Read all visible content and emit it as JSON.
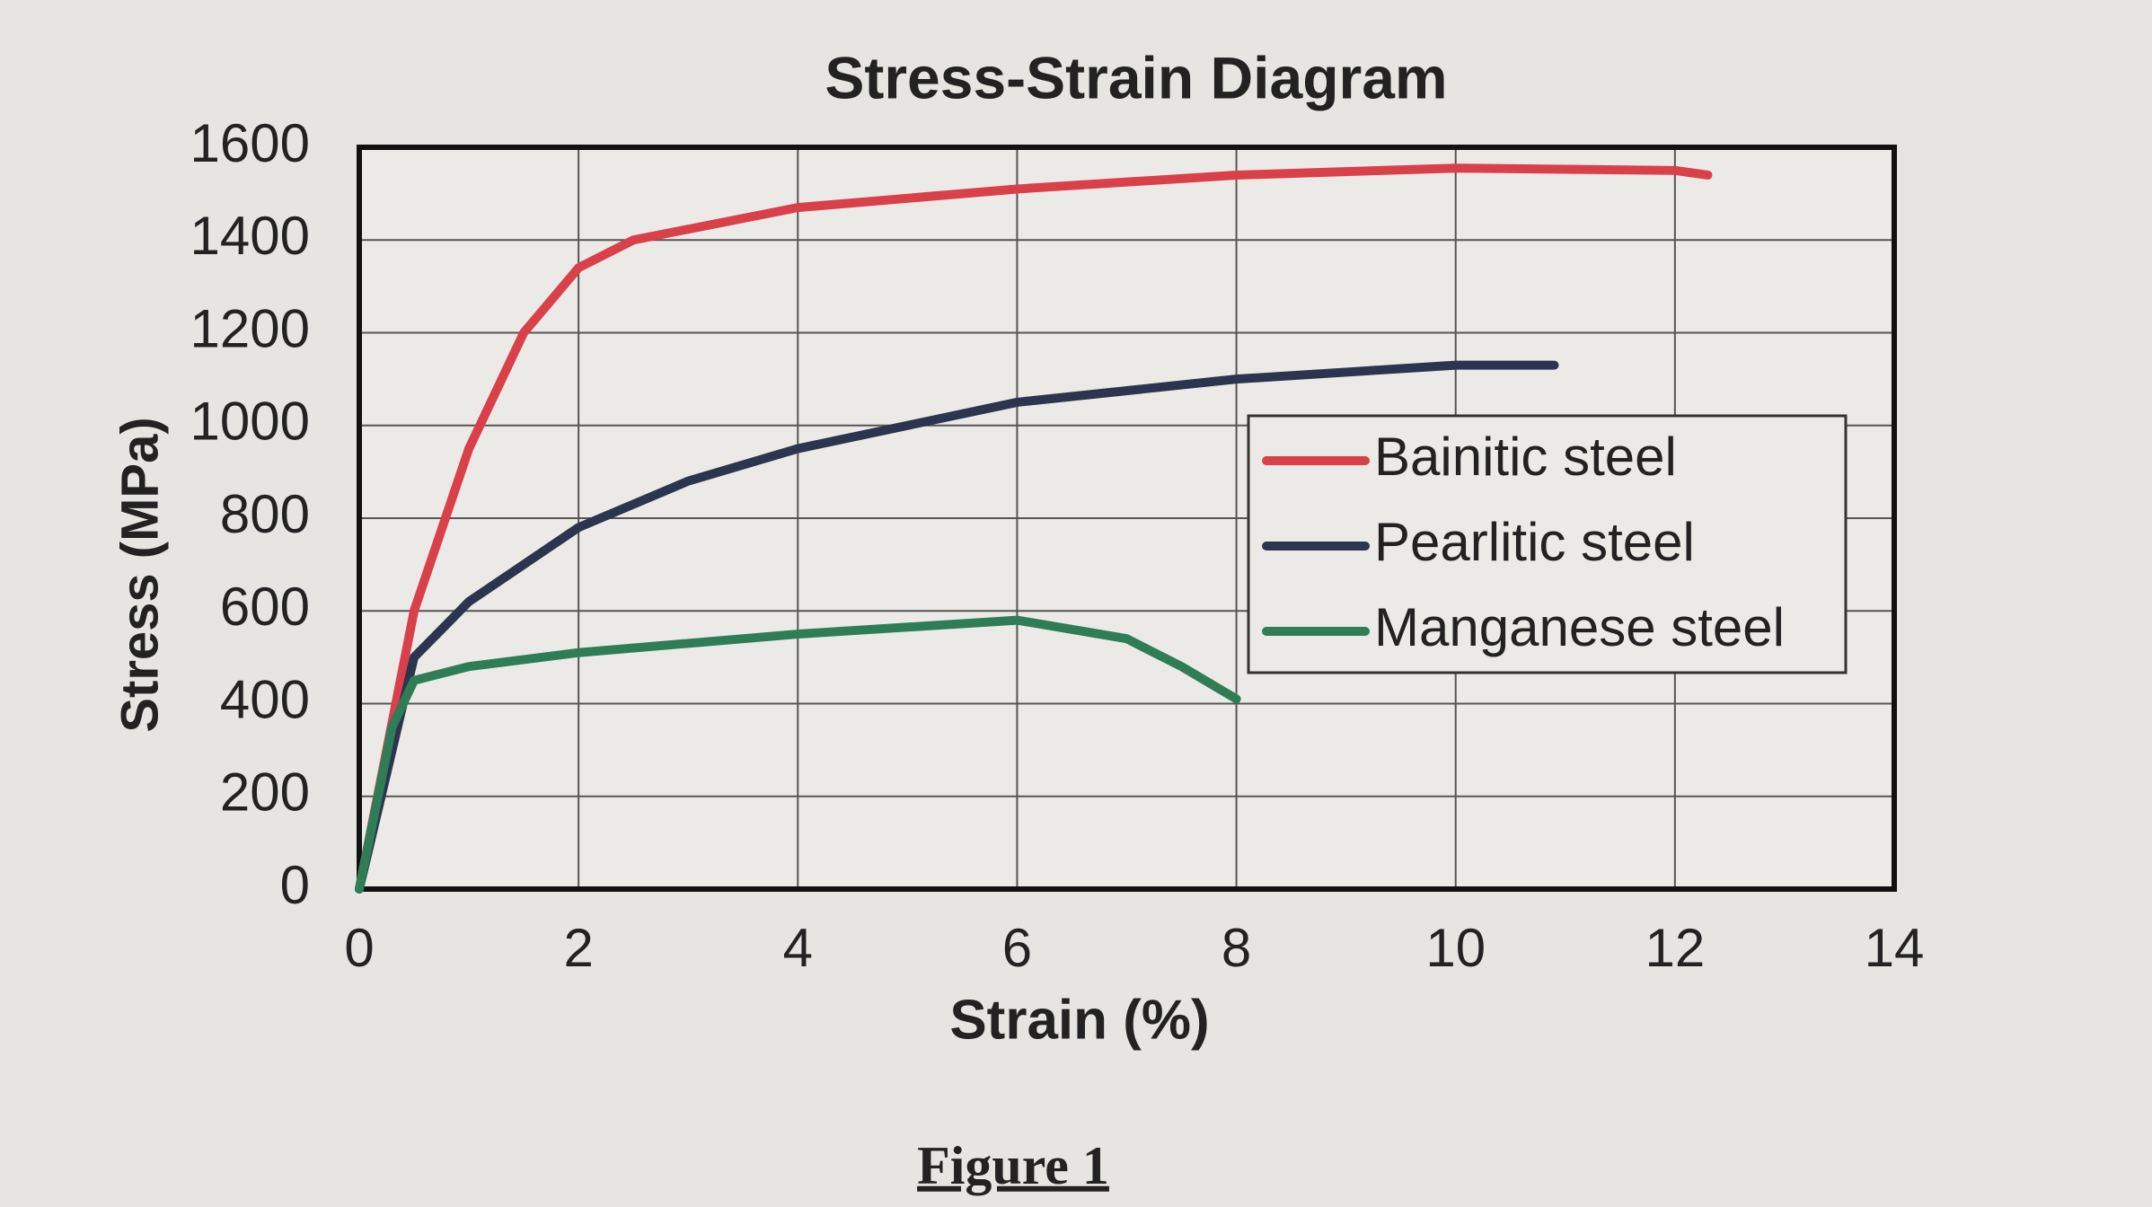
{
  "chart_data": {
    "type": "line",
    "title": "Stress-Strain Diagram",
    "x_label": "Strain  (%)",
    "y_label": "Stress  (MPa)",
    "xlim": [
      0,
      14
    ],
    "xticks": [
      0,
      2,
      4,
      6,
      8,
      10,
      12,
      14
    ],
    "ylim": [
      0,
      1600
    ],
    "yticks": [
      0,
      200,
      400,
      600,
      800,
      1000,
      1200,
      1400,
      1600
    ],
    "grid": true,
    "legend_position": "right",
    "series": [
      {
        "name": "Bainitic steel",
        "color": "#d9404a",
        "x": [
          0,
          0.5,
          1,
          1.5,
          2,
          2.5,
          4,
          6,
          8,
          10,
          12,
          12.3
        ],
        "values": [
          0,
          600,
          950,
          1200,
          1340,
          1400,
          1470,
          1510,
          1540,
          1555,
          1550,
          1540
        ]
      },
      {
        "name": "Pearlitic steel",
        "color": "#2b3550",
        "x": [
          0,
          0.5,
          1,
          2,
          3,
          4,
          6,
          8,
          10,
          10.9
        ],
        "values": [
          0,
          500,
          620,
          780,
          880,
          950,
          1050,
          1100,
          1130,
          1130
        ]
      },
      {
        "name": "Manganese steel",
        "color": "#2f7d56",
        "x": [
          0,
          0.3,
          0.5,
          1,
          2,
          4,
          6,
          7,
          7.5,
          8
        ],
        "values": [
          0,
          350,
          450,
          480,
          510,
          550,
          580,
          540,
          480,
          410
        ]
      }
    ]
  },
  "figure_caption": "Figure 1"
}
